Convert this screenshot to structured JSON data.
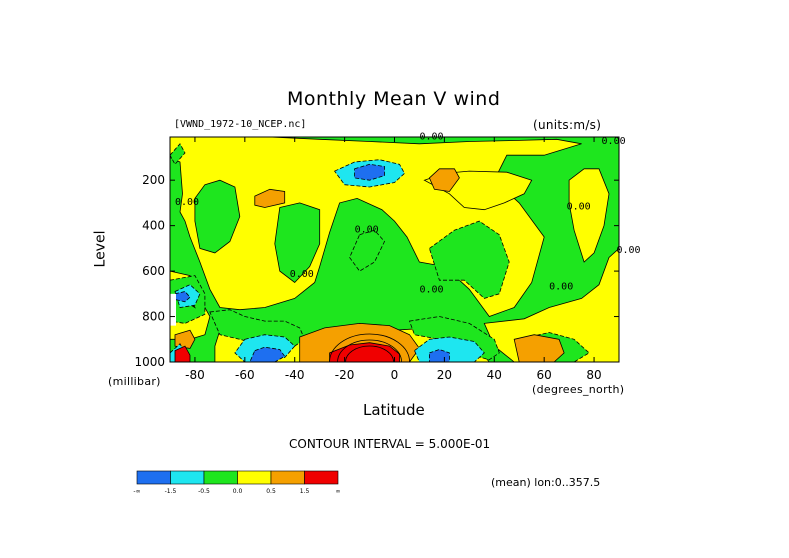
{
  "title": "Monthly Mean V wind",
  "file": "[VWND_1972-10_NCEP.nc]",
  "units": "(units:m/s)",
  "contour_interval": "CONTOUR INTERVAL = 5.000E-01",
  "mean_note": "(mean) lon:0..357.5",
  "colors": {
    "dark_blue": "#1e6ff0",
    "cyan": "#1ee6f0",
    "green": "#1ee61e",
    "yellow": "#ffff00",
    "orange": "#f5a000",
    "red": "#f00000"
  },
  "chart_data": {
    "type": "heatmap",
    "title": "Monthly Mean V wind",
    "xlabel": "Latitude",
    "x_unit": "(degrees_north)",
    "ylabel": "Level",
    "y_unit": "(millibar)",
    "xlim": [
      -90,
      90
    ],
    "ylim": [
      1000,
      10
    ],
    "x_ticks": [
      -80,
      -60,
      -40,
      -20,
      0,
      20,
      40,
      60,
      80
    ],
    "y_ticks": [
      200,
      400,
      600,
      800,
      1000
    ],
    "contour_interval": 0.5,
    "colorbar": {
      "levels": [
        "-∞",
        "-1.5",
        "-0.5",
        "0.0",
        "0.5",
        "1.5",
        "∞"
      ],
      "tick_labels": [
        "-1.5",
        "-0.5",
        "0.0",
        "0.5",
        "1.5"
      ],
      "colors": [
        "#1e6ff0",
        "#1ee6f0",
        "#1ee61e",
        "#ffff00",
        "#f5a000",
        "#f00000"
      ]
    },
    "contour_labels": [
      {
        "text": "0.00",
        "lat": 10,
        "level": 20
      },
      {
        "text": "0.00",
        "lat": 83,
        "level": 40
      },
      {
        "text": "0.00",
        "lat": -88,
        "level": 310
      },
      {
        "text": "0.00",
        "lat": -16,
        "level": 430
      },
      {
        "text": "0.00",
        "lat": -42,
        "level": 625
      },
      {
        "text": "0.00",
        "lat": 10,
        "level": 695
      },
      {
        "text": "0.00",
        "lat": 69,
        "level": 330
      },
      {
        "text": "0.00",
        "lat": 62,
        "level": 680
      },
      {
        "text": "0.00",
        "lat": 89,
        "level": 520
      }
    ],
    "regions": [
      {
        "color_key": "green",
        "desc": "broad v near 0 region (-0.5..0)"
      },
      {
        "color_key": "yellow",
        "desc": "v 0..0.5"
      },
      {
        "color_key": "cyan",
        "desc": "v -1.5..-0.5"
      },
      {
        "color_key": "dark_blue",
        "desc": "v < -1.5"
      },
      {
        "color_key": "orange",
        "desc": "v 0.5..1.5"
      },
      {
        "color_key": "red",
        "desc": "v > 1.5"
      }
    ]
  }
}
